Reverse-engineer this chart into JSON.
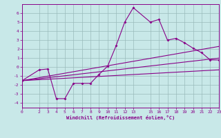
{
  "bg_color": "#c8e8e8",
  "line_color": "#880088",
  "grid_color": "#99bbbb",
  "xlim": [
    0,
    23
  ],
  "ylim": [
    -4.5,
    7.0
  ],
  "xticks": [
    0,
    2,
    3,
    4,
    5,
    6,
    7,
    8,
    9,
    10,
    11,
    12,
    13,
    15,
    16,
    17,
    18,
    19,
    20,
    21,
    22,
    23
  ],
  "yticks": [
    -4,
    -3,
    -2,
    -1,
    0,
    1,
    2,
    3,
    4,
    5,
    6
  ],
  "xlabel": "Windchill (Refroidissement éolien,°C)",
  "curve_x": [
    0,
    2,
    3,
    4,
    5,
    6,
    7,
    8,
    9,
    10,
    11,
    12,
    13,
    15,
    16,
    17,
    18,
    19,
    20,
    21,
    22,
    23
  ],
  "curve_y": [
    -1.5,
    -0.3,
    -0.2,
    -3.5,
    -3.5,
    -1.8,
    -1.8,
    -1.8,
    -0.8,
    0.1,
    2.4,
    5.0,
    6.6,
    5.0,
    5.3,
    3.0,
    3.2,
    2.7,
    2.1,
    1.6,
    0.8,
    0.8
  ],
  "line1_x": [
    0,
    23
  ],
  "line1_y": [
    -1.5,
    2.3
  ],
  "line2_x": [
    0,
    23
  ],
  "line2_y": [
    -1.5,
    1.0
  ],
  "line3_x": [
    0,
    23
  ],
  "line3_y": [
    -1.5,
    -0.3
  ]
}
